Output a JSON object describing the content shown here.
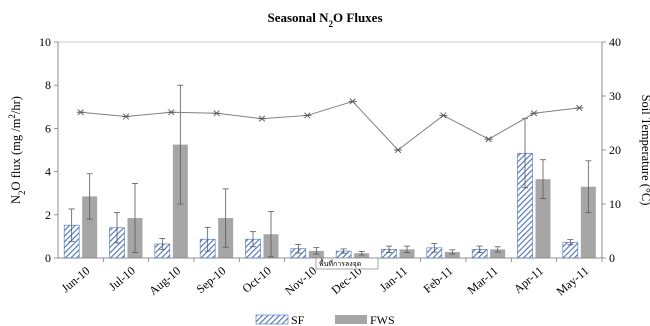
{
  "chart_data": {
    "type": "bar",
    "title_parts": [
      "Seasonal N",
      "2",
      "O Fluxes"
    ],
    "categories": [
      "Jun-10",
      "Jul-10",
      "Aug-10",
      "Sep-10",
      "Oct-10",
      "Nov-10",
      "Dec-10",
      "Jan-11",
      "Feb-11",
      "Mar-11",
      "Apr-11",
      "May-11"
    ],
    "ylim": [
      0,
      10
    ],
    "y_ticks": [
      "0",
      "2",
      "4",
      "6",
      "8",
      "10"
    ],
    "y2lim": [
      0,
      40
    ],
    "y2_ticks": [
      "0",
      "10",
      "20",
      "30",
      "40"
    ],
    "ylabel_parts": [
      "N",
      "2",
      "O flux (mg /m",
      "2",
      "/hr)"
    ],
    "y2label": "Soil Temperature (°C)",
    "grid": false,
    "legend_position": "bottom",
    "series": [
      {
        "name": "SF",
        "type": "bar",
        "pattern": "diagonal-hatch",
        "color": "#4472C4",
        "values": [
          1.52,
          1.4,
          0.65,
          0.87,
          0.87,
          0.43,
          0.32,
          0.4,
          0.47,
          0.4,
          4.85,
          0.73
        ],
        "error": [
          0.75,
          0.7,
          0.25,
          0.55,
          0.35,
          0.2,
          0.1,
          0.15,
          0.2,
          0.15,
          1.6,
          0.12
        ]
      },
      {
        "name": "FWS",
        "type": "bar",
        "color": "#A6A6A6",
        "values": [
          2.85,
          1.85,
          5.25,
          1.85,
          1.1,
          0.33,
          0.22,
          0.4,
          0.28,
          0.4,
          3.65,
          3.3
        ],
        "error": [
          1.05,
          1.6,
          2.75,
          1.35,
          1.05,
          0.15,
          0.08,
          0.15,
          0.1,
          0.12,
          0.9,
          1.2
        ]
      },
      {
        "type": "line",
        "axis": "right",
        "marker": "asterisk",
        "color": "#808080",
        "values": [
          27.0,
          26.2,
          27.0,
          26.8,
          25.8,
          26.4,
          29.0,
          20.0,
          26.4,
          22.0,
          26.8,
          27.8
        ]
      }
    ],
    "annotation": "พื้นที่การลงจุด"
  }
}
